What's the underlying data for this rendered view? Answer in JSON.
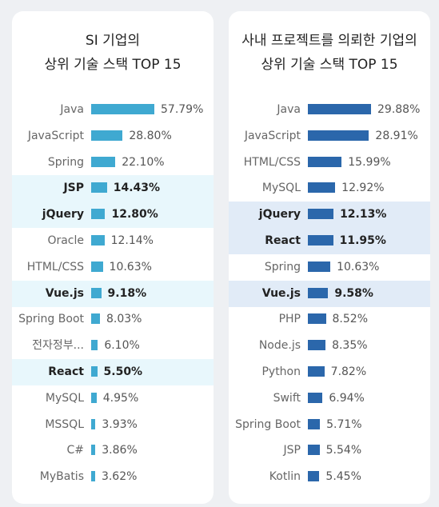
{
  "colors": {
    "left_bar": "#3fa9d1",
    "right_bar": "#2b67ab"
  },
  "chart_data": [
    {
      "type": "bar",
      "orientation": "horizontal",
      "title": "SI 기업의\n상위 기술 스택 TOP 15",
      "title_lines": [
        "SI 기업의",
        "상위 기술 스택 TOP 15"
      ],
      "categories": [
        "Java",
        "JavaScript",
        "Spring",
        "JSP",
        "jQuery",
        "Oracle",
        "HTML/CSS",
        "Vue.js",
        "Spring Boot",
        "전자정부...",
        "React",
        "MySQL",
        "MSSQL",
        "C#",
        "MyBatis"
      ],
      "values": [
        57.79,
        28.8,
        22.1,
        14.43,
        12.8,
        12.14,
        10.63,
        9.18,
        8.03,
        6.1,
        5.5,
        4.95,
        3.93,
        3.86,
        3.62
      ],
      "value_labels": [
        "57.79%",
        "28.80%",
        "22.10%",
        "14.43%",
        "12.80%",
        "12.14%",
        "10.63%",
        "9.18%",
        "8.03%",
        "6.10%",
        "5.50%",
        "4.95%",
        "3.93%",
        "3.86%",
        "3.62%"
      ],
      "highlighted": [
        "JSP",
        "jQuery",
        "Vue.js",
        "React"
      ],
      "xlim": [
        0,
        57.79
      ]
    },
    {
      "type": "bar",
      "orientation": "horizontal",
      "title": "사내 프로젝트를 의뢰한 기업의\n상위 기술 스택 TOP 15",
      "title_lines": [
        "사내 프로젝트를 의뢰한 기업의",
        "상위 기술 스택 TOP 15"
      ],
      "categories": [
        "Java",
        "JavaScript",
        "HTML/CSS",
        "MySQL",
        "jQuery",
        "React",
        "Spring",
        "Vue.js",
        "PHP",
        "Node.js",
        "Python",
        "Swift",
        "Spring Boot",
        "JSP",
        "Kotlin"
      ],
      "values": [
        29.88,
        28.91,
        15.99,
        12.92,
        12.13,
        11.95,
        10.63,
        9.58,
        8.52,
        8.35,
        7.82,
        6.94,
        5.71,
        5.54,
        5.45
      ],
      "value_labels": [
        "29.88%",
        "28.91%",
        "15.99%",
        "12.92%",
        "12.13%",
        "11.95%",
        "10.63%",
        "9.58%",
        "8.52%",
        "8.35%",
        "7.82%",
        "6.94%",
        "5.71%",
        "5.54%",
        "5.45%"
      ],
      "highlighted": [
        "jQuery",
        "React",
        "Vue.js"
      ],
      "xlim": [
        0,
        29.88
      ]
    }
  ]
}
